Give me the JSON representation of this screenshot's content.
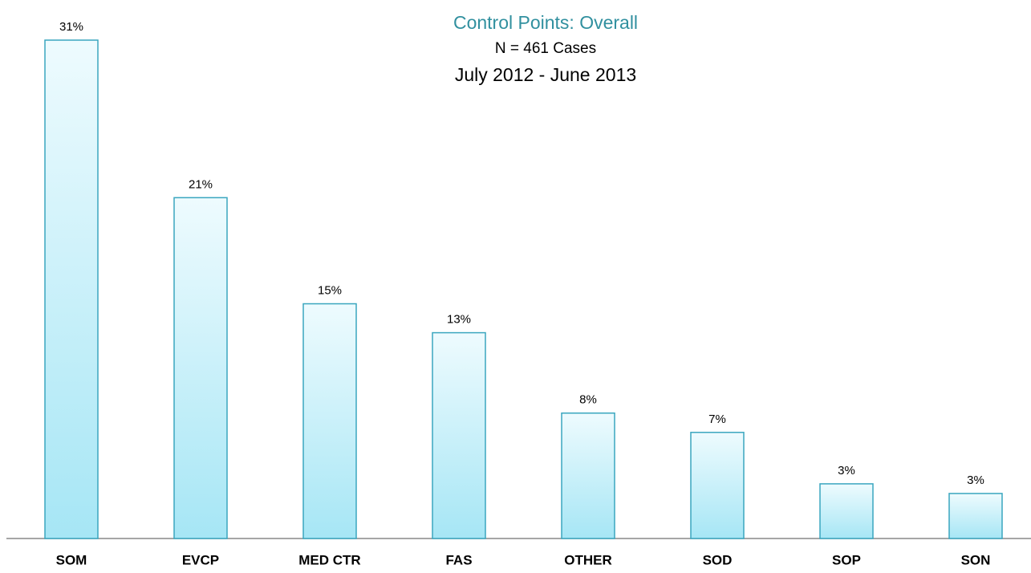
{
  "chart_data": {
    "type": "bar",
    "title": "Control Points:  Overall",
    "subtitle": [
      "N = 461 Cases",
      "July 2012 - June 2013"
    ],
    "categories": [
      "SOM",
      "EVCP",
      "MED CTR",
      "FAS",
      "OTHER",
      "SOD",
      "SOP",
      "SON"
    ],
    "values": [
      31,
      21.2,
      14.6,
      12.8,
      7.8,
      6.6,
      3.4,
      2.8
    ],
    "value_labels": [
      "31%",
      "21%",
      "15%",
      "13%",
      "8%",
      "7%",
      "3%",
      "3%"
    ],
    "color": "#a6e6f5",
    "edge_color": "#3aa6bf"
  }
}
